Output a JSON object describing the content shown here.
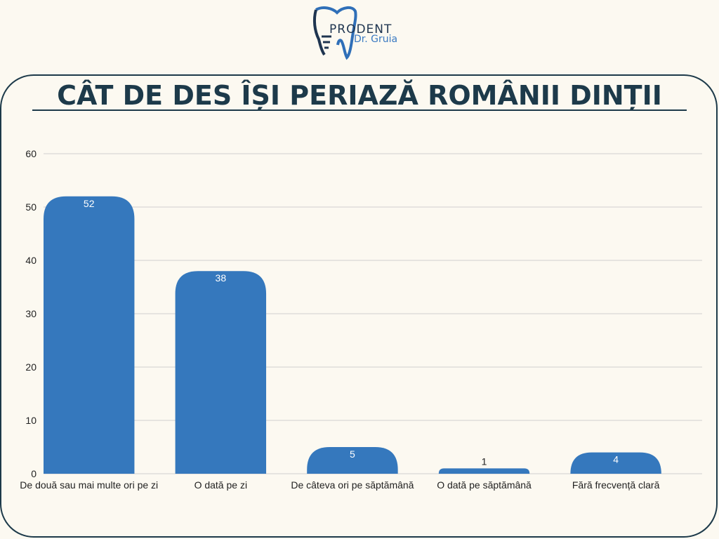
{
  "logo": {
    "line1": "PRODENT",
    "line2": "Dr. Gruia"
  },
  "colors": {
    "bar": "#3578bd",
    "title": "#1d3a4a",
    "grid": "#cfcfcf",
    "background": "#fcf9f1"
  },
  "chart_data": {
    "type": "bar",
    "title": "CÂT DE DES ÎȘI PERIAZĂ ROMÂNII DINȚII",
    "categories": [
      "De două sau mai multe ori pe zi",
      "O dată pe zi",
      "De câteva ori pe săptămână",
      "O dată pe săptămână",
      "Fără frecvență clară"
    ],
    "values": [
      52,
      38,
      5,
      1,
      4
    ],
    "data_labels": [
      "52",
      "38",
      "5",
      "1",
      "4"
    ],
    "ylim": [
      0,
      60
    ],
    "yticks": [
      0,
      10,
      20,
      30,
      40,
      50,
      60
    ],
    "grid": true,
    "legend": "none",
    "xlabel": "",
    "ylabel": ""
  }
}
